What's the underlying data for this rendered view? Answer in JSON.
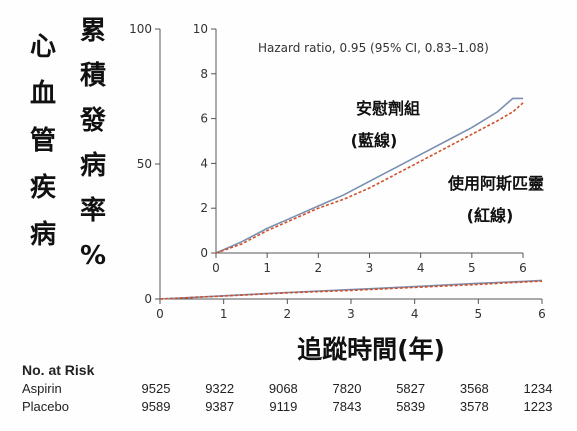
{
  "y_label_left": [
    "心",
    "血",
    "管",
    "疾",
    "病"
  ],
  "y_label_right": [
    "累",
    "積",
    "發",
    "病",
    "率",
    "%"
  ],
  "xlabel": "追蹤時間(年)",
  "colors": {
    "aspirin": "#d0502a",
    "placebo": "#7a8fb0",
    "axis": "#555555"
  },
  "chart_data": [
    {
      "type": "line",
      "xlabel": "追蹤時間(年)",
      "xlim": [
        0,
        6
      ],
      "ylim": [
        0,
        100
      ],
      "xticks": [
        0,
        1,
        2,
        3,
        4,
        5,
        6
      ],
      "yticks": [
        0,
        50,
        100
      ],
      "series": [
        {
          "x": [
            0,
            1,
            2,
            3,
            4,
            5,
            5.7,
            6
          ],
          "y": [
            0,
            1.2,
            2.4,
            3.5,
            4.6,
            5.8,
            6.5,
            6.9
          ]
        },
        {
          "x": [
            0,
            1,
            2,
            3,
            4,
            5,
            5.7,
            6
          ],
          "y": [
            0,
            1.1,
            2.3,
            3.2,
            4.3,
            5.4,
            6.3,
            6.6
          ]
        }
      ]
    },
    {
      "type": "line",
      "xlim": [
        0,
        6
      ],
      "ylim": [
        0,
        10
      ],
      "xticks": [
        0,
        1,
        2,
        3,
        4,
        5,
        6
      ],
      "yticks": [
        0,
        2,
        4,
        6,
        8,
        10
      ],
      "annotation": "Hazard ratio, 0.95 (95% CI, 0.83–1.08)",
      "series": [
        {
          "name": "安慰劑組 (藍線)",
          "x": [
            0,
            0.5,
            1,
            1.5,
            2,
            2.5,
            3,
            3.5,
            4,
            4.5,
            5,
            5.5,
            5.8,
            6
          ],
          "y": [
            0,
            0.5,
            1.1,
            1.6,
            2.1,
            2.6,
            3.2,
            3.8,
            4.4,
            5.0,
            5.6,
            6.3,
            6.9,
            6.9
          ]
        },
        {
          "name": "使用阿斯匹靈 (紅線)",
          "x": [
            0,
            0.5,
            1,
            1.5,
            2,
            2.5,
            3,
            3.5,
            4,
            4.5,
            5,
            5.5,
            5.8,
            6
          ],
          "y": [
            0,
            0.4,
            1.0,
            1.5,
            2.0,
            2.4,
            2.9,
            3.5,
            4.1,
            4.7,
            5.3,
            5.9,
            6.3,
            6.7
          ]
        }
      ],
      "labels": {
        "placebo_line1": "安慰劑組",
        "placebo_line2": "(藍線)",
        "aspirin_line1": "使用阿斯匹靈",
        "aspirin_line2": "(紅線)"
      }
    }
  ],
  "risk_table": {
    "title": "No. at Risk",
    "rows": [
      {
        "name": "Aspirin",
        "values": [
          "9525",
          "9322",
          "9068",
          "7820",
          "5827",
          "3568",
          "1234"
        ]
      },
      {
        "name": "Placebo",
        "values": [
          "9589",
          "9387",
          "9119",
          "7843",
          "5839",
          "3578",
          "1223"
        ]
      }
    ]
  }
}
